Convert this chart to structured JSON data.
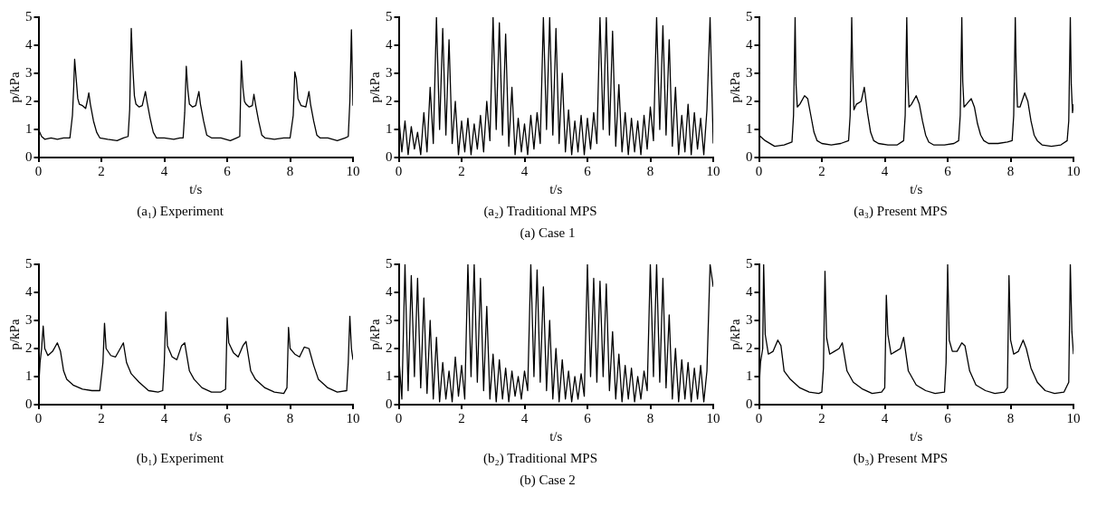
{
  "chart_data": [
    {
      "type": "line",
      "title": "(a₁) Experiment",
      "xlabel": "t/s",
      "ylabel": "p/kPa",
      "xlim": [
        0,
        10
      ],
      "xticks": [
        0,
        2,
        4,
        6,
        8,
        10
      ],
      "ylim": [
        0,
        5
      ],
      "yticks": [
        0,
        1,
        2,
        3,
        4,
        5
      ],
      "x": [
        0,
        0.1,
        0.2,
        0.4,
        0.6,
        0.8,
        1.0,
        1.08,
        1.12,
        1.15,
        1.2,
        1.25,
        1.3,
        1.4,
        1.5,
        1.55,
        1.6,
        1.65,
        1.75,
        1.85,
        1.95,
        2.2,
        2.5,
        2.7,
        2.85,
        2.9,
        2.95,
        3.0,
        3.05,
        3.1,
        3.2,
        3.3,
        3.4,
        3.45,
        3.55,
        3.65,
        3.75,
        4.0,
        4.3,
        4.5,
        4.6,
        4.65,
        4.7,
        4.75,
        4.8,
        4.9,
        5.0,
        5.1,
        5.15,
        5.25,
        5.35,
        5.5,
        5.8,
        6.1,
        6.3,
        6.4,
        6.45,
        6.5,
        6.55,
        6.6,
        6.7,
        6.8,
        6.85,
        6.9,
        7.0,
        7.1,
        7.2,
        7.5,
        7.8,
        8.0,
        8.1,
        8.15,
        8.2,
        8.25,
        8.35,
        8.5,
        8.6,
        8.65,
        8.75,
        8.85,
        8.95,
        9.2,
        9.5,
        9.75,
        9.85,
        9.9,
        9.95,
        10
      ],
      "series": [
        {
          "color": "#000000",
          "values": [
            1.0,
            0.75,
            0.65,
            0.7,
            0.65,
            0.7,
            0.7,
            1.5,
            2.5,
            3.5,
            2.8,
            2.1,
            1.9,
            1.85,
            1.75,
            2.0,
            2.3,
            1.9,
            1.3,
            0.9,
            0.7,
            0.65,
            0.6,
            0.7,
            0.75,
            1.7,
            4.6,
            3.2,
            2.2,
            1.9,
            1.8,
            1.85,
            2.35,
            2.0,
            1.4,
            0.9,
            0.7,
            0.7,
            0.65,
            0.7,
            0.7,
            1.6,
            3.25,
            2.4,
            1.9,
            1.8,
            1.85,
            2.35,
            1.9,
            1.3,
            0.8,
            0.7,
            0.7,
            0.6,
            0.7,
            0.75,
            3.45,
            2.5,
            2.0,
            1.9,
            1.8,
            1.85,
            2.25,
            1.9,
            1.3,
            0.8,
            0.7,
            0.65,
            0.7,
            0.7,
            1.5,
            3.05,
            2.8,
            2.1,
            1.85,
            1.8,
            2.35,
            1.9,
            1.3,
            0.8,
            0.7,
            0.7,
            0.6,
            0.7,
            0.75,
            2.0,
            4.55,
            1.85
          ]
        }
      ]
    },
    {
      "type": "line",
      "title": "(a₂) Traditional MPS",
      "xlabel": "t/s",
      "ylabel": "p/kPa",
      "xlim": [
        0,
        10
      ],
      "xticks": [
        0,
        2,
        4,
        6,
        8,
        10
      ],
      "ylim": [
        0,
        5
      ],
      "yticks": [
        0,
        1,
        2,
        3,
        4,
        5
      ],
      "annotations": [
        "(a) Case 1"
      ],
      "x": [
        0,
        0.1,
        0.2,
        0.3,
        0.4,
        0.5,
        0.6,
        0.7,
        0.8,
        0.9,
        1.0,
        1.1,
        1.2,
        1.3,
        1.4,
        1.5,
        1.6,
        1.7,
        1.8,
        1.9,
        2.0,
        2.1,
        2.2,
        2.3,
        2.4,
        2.5,
        2.6,
        2.7,
        2.8,
        2.9,
        3.0,
        3.1,
        3.2,
        3.3,
        3.4,
        3.5,
        3.6,
        3.7,
        3.8,
        3.9,
        4.0,
        4.1,
        4.2,
        4.3,
        4.4,
        4.5,
        4.6,
        4.7,
        4.8,
        4.9,
        5.0,
        5.1,
        5.2,
        5.3,
        5.4,
        5.5,
        5.6,
        5.7,
        5.8,
        5.9,
        6.0,
        6.1,
        6.2,
        6.3,
        6.4,
        6.5,
        6.6,
        6.7,
        6.8,
        6.9,
        7.0,
        7.1,
        7.2,
        7.3,
        7.4,
        7.5,
        7.6,
        7.7,
        7.8,
        7.9,
        8.0,
        8.1,
        8.2,
        8.3,
        8.4,
        8.5,
        8.6,
        8.7,
        8.8,
        8.9,
        9.0,
        9.1,
        9.2,
        9.3,
        9.4,
        9.5,
        9.6,
        9.7,
        9.8,
        9.9,
        10
      ],
      "series": [
        {
          "color": "#000000",
          "values": [
            1.5,
            0.2,
            1.3,
            0.1,
            1.1,
            0.3,
            0.9,
            0.1,
            1.6,
            0.2,
            2.5,
            0.5,
            5.0,
            1.0,
            4.6,
            0.8,
            4.2,
            0.5,
            2.0,
            0.1,
            1.3,
            0.2,
            1.4,
            0.1,
            1.2,
            0.3,
            1.5,
            0.2,
            2.0,
            0.6,
            5.0,
            1.0,
            4.8,
            0.8,
            4.4,
            0.4,
            2.5,
            0.1,
            1.4,
            0.2,
            1.2,
            0.1,
            1.5,
            0.3,
            1.6,
            0.5,
            5.0,
            1.0,
            5.0,
            0.8,
            4.6,
            0.5,
            3.0,
            0.2,
            1.7,
            0.1,
            1.3,
            0.2,
            1.5,
            0.1,
            1.4,
            0.3,
            1.6,
            0.5,
            5.0,
            1.0,
            5.0,
            0.8,
            4.5,
            0.4,
            2.6,
            0.2,
            1.6,
            0.1,
            1.4,
            0.2,
            1.3,
            0.1,
            1.5,
            0.3,
            1.8,
            0.6,
            5.0,
            1.0,
            4.7,
            0.8,
            4.2,
            0.4,
            2.5,
            0.1,
            1.5,
            0.2,
            1.9,
            0.1,
            1.6,
            0.3,
            1.4,
            0.1,
            1.7,
            5.0,
            0.5
          ]
        }
      ]
    },
    {
      "type": "line",
      "title": "(a₃) Present MPS",
      "xlabel": "t/s",
      "ylabel": "p/kPa",
      "xlim": [
        0,
        10
      ],
      "xticks": [
        0,
        2,
        4,
        6,
        8,
        10
      ],
      "ylim": [
        0,
        5
      ],
      "yticks": [
        0,
        1,
        2,
        3,
        4,
        5
      ],
      "x": [
        0,
        0.2,
        0.5,
        0.8,
        1.05,
        1.1,
        1.15,
        1.18,
        1.22,
        1.3,
        1.45,
        1.55,
        1.65,
        1.75,
        1.85,
        2.0,
        2.3,
        2.6,
        2.85,
        2.9,
        2.95,
        2.98,
        3.02,
        3.1,
        3.25,
        3.35,
        3.45,
        3.55,
        3.65,
        3.8,
        4.1,
        4.4,
        4.6,
        4.65,
        4.7,
        4.73,
        4.77,
        4.85,
        5.0,
        5.1,
        5.2,
        5.3,
        5.4,
        5.55,
        5.9,
        6.2,
        6.35,
        6.4,
        6.45,
        6.48,
        6.52,
        6.6,
        6.75,
        6.85,
        6.95,
        7.05,
        7.15,
        7.3,
        7.6,
        7.9,
        8.05,
        8.1,
        8.15,
        8.18,
        8.22,
        8.3,
        8.45,
        8.55,
        8.65,
        8.75,
        8.85,
        9.0,
        9.3,
        9.6,
        9.8,
        9.85,
        9.9,
        9.93,
        9.97,
        10
      ],
      "series": [
        {
          "color": "#000000",
          "values": [
            0.8,
            0.6,
            0.4,
            0.45,
            0.55,
            1.5,
            5.0,
            2.6,
            1.8,
            1.9,
            2.2,
            2.1,
            1.5,
            0.9,
            0.6,
            0.5,
            0.45,
            0.5,
            0.6,
            1.5,
            5.0,
            3.2,
            1.7,
            1.9,
            2.0,
            2.5,
            1.6,
            0.9,
            0.6,
            0.5,
            0.45,
            0.45,
            0.6,
            1.5,
            5.0,
            2.9,
            1.8,
            1.9,
            2.2,
            1.9,
            1.3,
            0.8,
            0.55,
            0.45,
            0.45,
            0.5,
            0.6,
            1.5,
            5.0,
            2.7,
            1.8,
            1.9,
            2.1,
            1.8,
            1.2,
            0.8,
            0.6,
            0.5,
            0.5,
            0.55,
            0.6,
            1.5,
            5.0,
            3.1,
            1.8,
            1.8,
            2.3,
            2.0,
            1.3,
            0.8,
            0.6,
            0.45,
            0.4,
            0.45,
            0.6,
            1.3,
            5.0,
            2.6,
            1.6,
            1.9
          ]
        }
      ]
    },
    {
      "type": "line",
      "title": "(b₁) Experiment",
      "xlabel": "t/s",
      "ylabel": "p/kPa",
      "xlim": [
        0,
        10
      ],
      "xticks": [
        0,
        2,
        4,
        6,
        8,
        10
      ],
      "ylim": [
        0,
        5
      ],
      "yticks": [
        0,
        1,
        2,
        3,
        4,
        5
      ],
      "x": [
        0,
        0.05,
        0.1,
        0.15,
        0.2,
        0.3,
        0.45,
        0.6,
        0.7,
        0.8,
        0.9,
        1.1,
        1.4,
        1.7,
        1.95,
        2.05,
        2.1,
        2.15,
        2.3,
        2.45,
        2.6,
        2.7,
        2.8,
        2.95,
        3.2,
        3.5,
        3.8,
        3.95,
        4.0,
        4.05,
        4.1,
        4.25,
        4.4,
        4.55,
        4.65,
        4.8,
        4.95,
        5.2,
        5.5,
        5.8,
        5.95,
        6.0,
        6.05,
        6.2,
        6.35,
        6.5,
        6.6,
        6.75,
        6.9,
        7.2,
        7.5,
        7.8,
        7.9,
        7.95,
        8.0,
        8.15,
        8.3,
        8.45,
        8.6,
        8.75,
        8.9,
        9.2,
        9.5,
        9.8,
        9.85,
        9.9,
        9.95,
        10
      ],
      "series": [
        {
          "color": "#000000",
          "values": [
            0.5,
            1.5,
            2.0,
            2.8,
            2.0,
            1.75,
            1.9,
            2.2,
            1.9,
            1.2,
            0.9,
            0.7,
            0.55,
            0.5,
            0.5,
            1.5,
            2.9,
            2.0,
            1.75,
            1.7,
            2.0,
            2.2,
            1.5,
            1.1,
            0.8,
            0.5,
            0.45,
            0.5,
            1.5,
            3.3,
            2.1,
            1.7,
            1.6,
            2.1,
            2.2,
            1.2,
            0.9,
            0.6,
            0.45,
            0.45,
            0.55,
            3.1,
            2.2,
            1.85,
            1.7,
            2.1,
            2.25,
            1.2,
            0.9,
            0.6,
            0.45,
            0.4,
            0.6,
            2.75,
            2.0,
            1.8,
            1.7,
            2.05,
            2.0,
            1.4,
            0.9,
            0.6,
            0.45,
            0.5,
            1.5,
            3.15,
            2.0,
            1.6
          ]
        }
      ]
    },
    {
      "type": "line",
      "title": "(b₂) Traditional MPS",
      "xlabel": "t/s",
      "ylabel": "p/kPa",
      "xlim": [
        0,
        10
      ],
      "xticks": [
        0,
        2,
        4,
        6,
        8,
        10
      ],
      "ylim": [
        0,
        5
      ],
      "yticks": [
        0,
        1,
        2,
        3,
        4,
        5
      ],
      "annotations": [
        "(b) Case 2"
      ],
      "x": [
        0,
        0.1,
        0.2,
        0.3,
        0.4,
        0.5,
        0.6,
        0.7,
        0.8,
        0.9,
        1.0,
        1.1,
        1.2,
        1.3,
        1.4,
        1.5,
        1.6,
        1.7,
        1.8,
        1.9,
        2.0,
        2.1,
        2.2,
        2.3,
        2.4,
        2.5,
        2.6,
        2.7,
        2.8,
        2.9,
        3.0,
        3.1,
        3.2,
        3.3,
        3.4,
        3.5,
        3.6,
        3.7,
        3.8,
        3.9,
        4.0,
        4.1,
        4.2,
        4.3,
        4.4,
        4.5,
        4.6,
        4.7,
        4.8,
        4.9,
        5.0,
        5.1,
        5.2,
        5.3,
        5.4,
        5.5,
        5.6,
        5.7,
        5.8,
        5.9,
        6.0,
        6.1,
        6.2,
        6.3,
        6.4,
        6.5,
        6.6,
        6.7,
        6.8,
        6.9,
        7.0,
        7.1,
        7.2,
        7.3,
        7.4,
        7.5,
        7.6,
        7.7,
        7.8,
        7.9,
        8.0,
        8.1,
        8.2,
        8.3,
        8.4,
        8.5,
        8.6,
        8.7,
        8.8,
        8.9,
        9.0,
        9.1,
        9.2,
        9.3,
        9.4,
        9.5,
        9.6,
        9.7,
        9.8,
        9.9,
        10
      ],
      "series": [
        {
          "color": "#000000",
          "values": [
            1.8,
            0.2,
            5.0,
            0.5,
            4.6,
            1.0,
            4.5,
            0.6,
            3.8,
            0.4,
            3.0,
            0.2,
            2.4,
            0.1,
            1.5,
            0.2,
            1.2,
            0.1,
            1.7,
            0.3,
            1.4,
            0.2,
            5.0,
            1.0,
            5.0,
            0.8,
            4.5,
            0.5,
            3.5,
            0.2,
            1.8,
            0.1,
            1.6,
            0.2,
            1.3,
            0.1,
            1.2,
            0.3,
            1.0,
            0.2,
            1.2,
            0.5,
            5.0,
            1.0,
            4.8,
            0.8,
            4.2,
            0.5,
            3.0,
            0.2,
            2.0,
            0.1,
            1.6,
            0.2,
            1.2,
            0.1,
            1.0,
            0.2,
            1.1,
            0.3,
            5.0,
            1.0,
            4.5,
            0.8,
            4.4,
            1.0,
            4.3,
            0.5,
            2.6,
            0.2,
            1.8,
            0.1,
            1.4,
            0.2,
            1.3,
            0.1,
            1.0,
            0.2,
            1.2,
            0.5,
            5.0,
            1.0,
            5.0,
            0.8,
            4.5,
            0.6,
            3.2,
            0.2,
            2.0,
            0.1,
            1.6,
            0.2,
            1.5,
            0.1,
            1.3,
            0.2,
            1.4,
            0.1,
            1.2,
            5.0,
            4.2
          ]
        }
      ]
    },
    {
      "type": "line",
      "title": "(b₃) Present MPS",
      "xlabel": "t/s",
      "ylabel": "p/kPa",
      "xlim": [
        0,
        10
      ],
      "xticks": [
        0,
        2,
        4,
        6,
        8,
        10
      ],
      "ylim": [
        0,
        5
      ],
      "yticks": [
        0,
        1,
        2,
        3,
        4,
        5
      ],
      "x": [
        0,
        0.05,
        0.12,
        0.15,
        0.2,
        0.3,
        0.45,
        0.6,
        0.7,
        0.8,
        1.0,
        1.3,
        1.6,
        1.9,
        2.0,
        2.05,
        2.1,
        2.15,
        2.25,
        2.4,
        2.55,
        2.65,
        2.8,
        3.0,
        3.3,
        3.6,
        3.9,
        4.0,
        4.05,
        4.1,
        4.2,
        4.35,
        4.5,
        4.6,
        4.75,
        5.0,
        5.3,
        5.6,
        5.9,
        5.95,
        6.0,
        6.05,
        6.15,
        6.3,
        6.45,
        6.55,
        6.7,
        6.9,
        7.2,
        7.5,
        7.8,
        7.9,
        7.95,
        8.0,
        8.1,
        8.25,
        8.4,
        8.5,
        8.65,
        8.85,
        9.1,
        9.4,
        9.7,
        9.85,
        9.9,
        9.95,
        10
      ],
      "series": [
        {
          "color": "#000000",
          "values": [
            0.5,
            1.5,
            2.0,
            5.0,
            2.5,
            1.8,
            1.9,
            2.3,
            2.1,
            1.2,
            0.9,
            0.6,
            0.45,
            0.4,
            0.45,
            1.3,
            4.75,
            2.4,
            1.8,
            1.9,
            2.0,
            2.2,
            1.2,
            0.8,
            0.55,
            0.4,
            0.45,
            0.6,
            3.9,
            2.5,
            1.8,
            1.9,
            2.0,
            2.4,
            1.2,
            0.7,
            0.5,
            0.4,
            0.45,
            1.5,
            5.0,
            2.3,
            1.9,
            1.9,
            2.2,
            2.1,
            1.2,
            0.7,
            0.5,
            0.4,
            0.45,
            0.6,
            4.6,
            2.3,
            1.8,
            1.9,
            2.3,
            2.0,
            1.3,
            0.8,
            0.5,
            0.4,
            0.45,
            0.8,
            5.0,
            2.6,
            1.8
          ]
        }
      ]
    }
  ]
}
